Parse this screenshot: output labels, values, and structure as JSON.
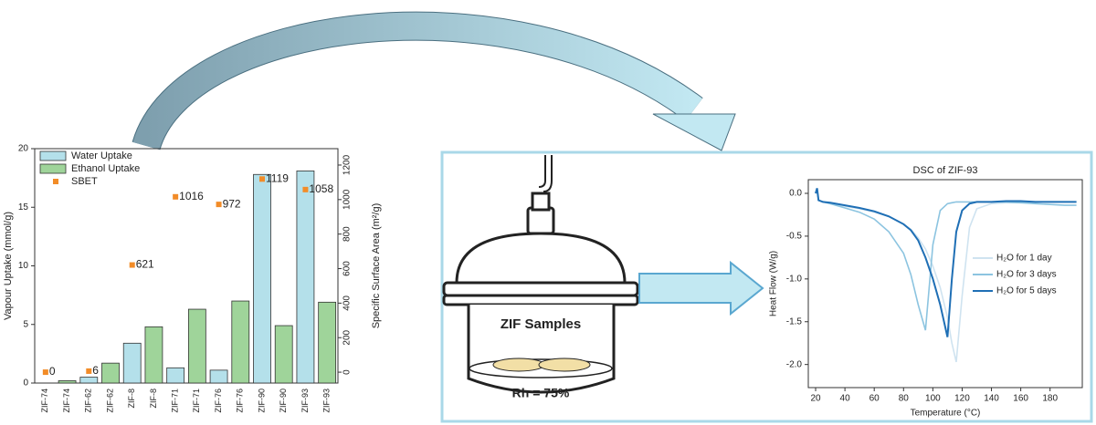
{
  "chart_data": [
    {
      "type": "bar",
      "categories": [
        "ZIF-74",
        "ZIF-74",
        "ZIF-62",
        "ZIF-62",
        "ZIF-8",
        "ZIF-8",
        "ZIF-71",
        "ZIF-71",
        "ZIF-76",
        "ZIF-76",
        "ZIF-90",
        "ZIF-90",
        "ZIF-93",
        "ZIF-93"
      ],
      "series": [
        {
          "name": "Water Uptake",
          "color": "#b4e0ea",
          "values": [
            0,
            null,
            0.5,
            null,
            3.4,
            null,
            1.3,
            null,
            1.1,
            null,
            17.8,
            null,
            18.1,
            null
          ]
        },
        {
          "name": "Ethanol Uptake",
          "color": "#9fd49a",
          "values": [
            null,
            0.2,
            null,
            1.7,
            null,
            4.8,
            null,
            6.3,
            null,
            7.0,
            null,
            4.9,
            null,
            6.9
          ]
        },
        {
          "name": "SBET",
          "color": "#f28c28",
          "type": "scatter",
          "axis": "y2",
          "values": [
            0,
            null,
            6,
            null,
            621,
            null,
            1016,
            null,
            972,
            null,
            1119,
            null,
            1058,
            null
          ]
        }
      ],
      "y_label": "Vapour Uptake (mmol/g)",
      "y2_label": "Specific Surface Area (m²/g)",
      "ylim": [
        0,
        20
      ],
      "yticks": [
        0,
        5,
        10,
        15,
        20
      ],
      "y2lim": [
        -63,
        1295
      ],
      "y2ticks": [
        0,
        200,
        400,
        600,
        800,
        1000,
        1200
      ],
      "legend": "upper left"
    },
    {
      "type": "line",
      "title": "DSC of ZIF-93",
      "x_label": "Temperature (°C)",
      "y_label": "Heat Flow (W/g)",
      "x": [
        20,
        21,
        22,
        25,
        30,
        40,
        50,
        60,
        70,
        80,
        85,
        90,
        95,
        100,
        105,
        110,
        113,
        116,
        120,
        125,
        130,
        140,
        150,
        160,
        170,
        180,
        190,
        198
      ],
      "series": [
        {
          "name": "H₂O for 1 day",
          "color": "#cfe3f0",
          "values": [
            0,
            0.05,
            -0.08,
            -0.1,
            -0.12,
            -0.15,
            -0.18,
            -0.22,
            -0.27,
            -0.36,
            -0.42,
            -0.52,
            -0.65,
            -0.85,
            -1.1,
            -1.45,
            -1.75,
            -1.97,
            -1.2,
            -0.4,
            -0.18,
            -0.12,
            -0.11,
            -0.11,
            -0.1,
            -0.1,
            -0.1,
            -0.1
          ]
        },
        {
          "name": "H₂O for 3 days",
          "color": "#8cc4e0",
          "values": [
            0,
            0.03,
            -0.08,
            -0.1,
            -0.12,
            -0.17,
            -0.22,
            -0.3,
            -0.45,
            -0.7,
            -0.95,
            -1.3,
            -1.6,
            -0.6,
            -0.2,
            -0.12,
            -0.11,
            -0.1,
            -0.1,
            -0.1,
            -0.1,
            -0.1,
            -0.1,
            -0.11,
            -0.12,
            -0.13,
            -0.14,
            -0.14
          ]
        },
        {
          "name": "H₂O for 5 days",
          "color": "#1f6fb5",
          "values": [
            0,
            0.06,
            -0.08,
            -0.1,
            -0.11,
            -0.14,
            -0.17,
            -0.21,
            -0.27,
            -0.36,
            -0.43,
            -0.55,
            -0.75,
            -1.0,
            -1.3,
            -1.68,
            -1.0,
            -0.45,
            -0.2,
            -0.12,
            -0.1,
            -0.1,
            -0.09,
            -0.09,
            -0.1,
            -0.1,
            -0.1,
            -0.1
          ]
        }
      ],
      "xlim": [
        15,
        202
      ],
      "xticks": [
        20,
        40,
        60,
        80,
        100,
        120,
        140,
        160,
        180
      ],
      "ylim": [
        -2.27,
        0.16
      ],
      "yticks": [
        {
          "value": 0,
          "label": "0.0"
        },
        -0.5,
        {
          "value": -1,
          "label": "-1.0"
        },
        -1.5,
        {
          "value": -2,
          "label": "-2.0"
        }
      ],
      "legend": "right"
    }
  ],
  "diagram": {
    "sample_label": "ZIF Samples",
    "humidity_label": "Rh = 75%"
  }
}
